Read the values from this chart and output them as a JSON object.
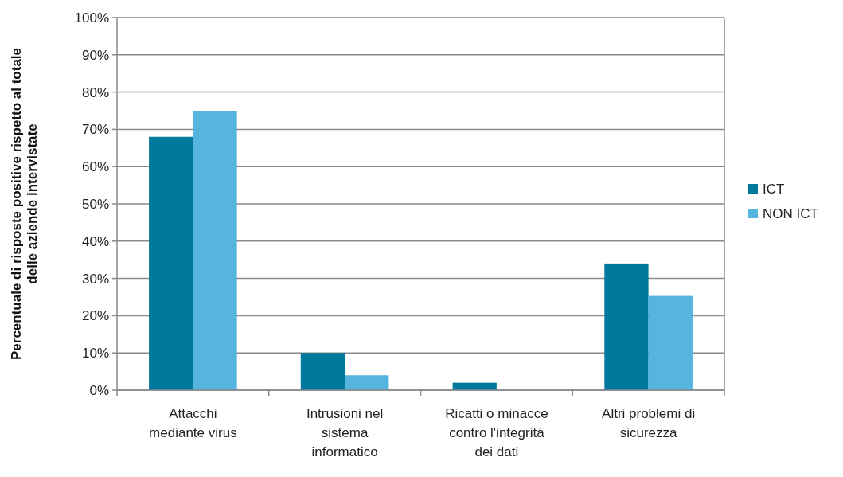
{
  "chart_data": {
    "type": "bar",
    "ylabel": "Percentuale di risposte positive rispetto al totale\ndelle aziende intervistate",
    "categories": [
      "Attacchi\nmediante virus",
      "Intrusioni nel\nsistema\ninformatico",
      "Ricatti o minacce\ncontro l'integrità\ndei dati",
      "Altri problemi di\nsicurezza"
    ],
    "series": [
      {
        "name": "ICT",
        "color": "#007a9c",
        "values": [
          68,
          10,
          2,
          34
        ]
      },
      {
        "name": "NON ICT",
        "color": "#55b5df",
        "values": [
          75,
          4,
          0,
          25.3
        ]
      }
    ],
    "ylim": [
      0,
      100
    ],
    "yticks": [
      {
        "value": 0,
        "label": "0%"
      },
      {
        "value": 10,
        "label": "10%"
      },
      {
        "value": 20,
        "label": "20%"
      },
      {
        "value": 30,
        "label": "30%"
      },
      {
        "value": 40,
        "label": "40%"
      },
      {
        "value": 50,
        "label": "50%"
      },
      {
        "value": 60,
        "label": "60%"
      },
      {
        "value": 70,
        "label": "70%"
      },
      {
        "value": 80,
        "label": "80%"
      },
      {
        "value": 90,
        "label": "90%"
      },
      {
        "value": 100,
        "label": "100%"
      }
    ],
    "grid": "y",
    "legend": "right"
  }
}
